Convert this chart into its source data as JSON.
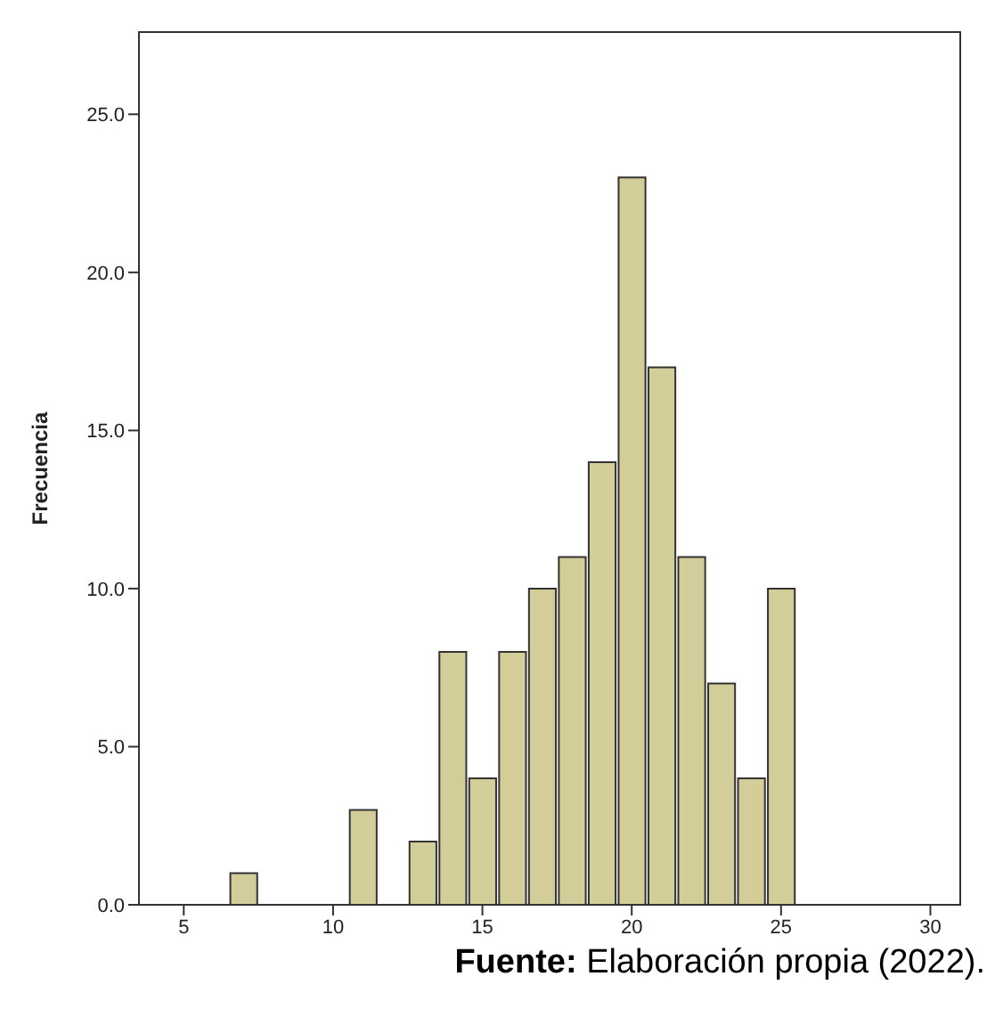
{
  "chart_data": {
    "type": "histogram",
    "ylabel": "Frecuencia",
    "bins": [
      6.5,
      7.5,
      8.5,
      9.5,
      10.5,
      11.5,
      12.5,
      13.5,
      14.5,
      15.5,
      16.5,
      17.5,
      18.5,
      19.5,
      20.5,
      21.5,
      22.5,
      23.5,
      24.5,
      25.5
    ],
    "values": [
      1,
      0,
      0,
      0,
      3,
      0,
      2,
      8,
      4,
      8,
      10,
      11,
      14,
      23,
      17,
      11,
      7,
      4,
      10
    ],
    "color": "#d3cd99",
    "xlim": [
      3.5,
      31
    ],
    "xticks": [
      5,
      10,
      15,
      20,
      25,
      30
    ],
    "ylim": [
      0,
      27.6
    ],
    "yticks": [
      {
        "value": 0,
        "label": "0.0"
      },
      {
        "value": 5,
        "label": "5.0"
      },
      {
        "value": 10,
        "label": "10.0"
      },
      {
        "value": 15,
        "label": "15.0"
      },
      {
        "value": 20,
        "label": "20.0"
      },
      {
        "value": 25,
        "label": "25.0"
      }
    ],
    "grid": false,
    "annotations": [
      "Fuente: Elaboración propia (2022)."
    ]
  }
}
